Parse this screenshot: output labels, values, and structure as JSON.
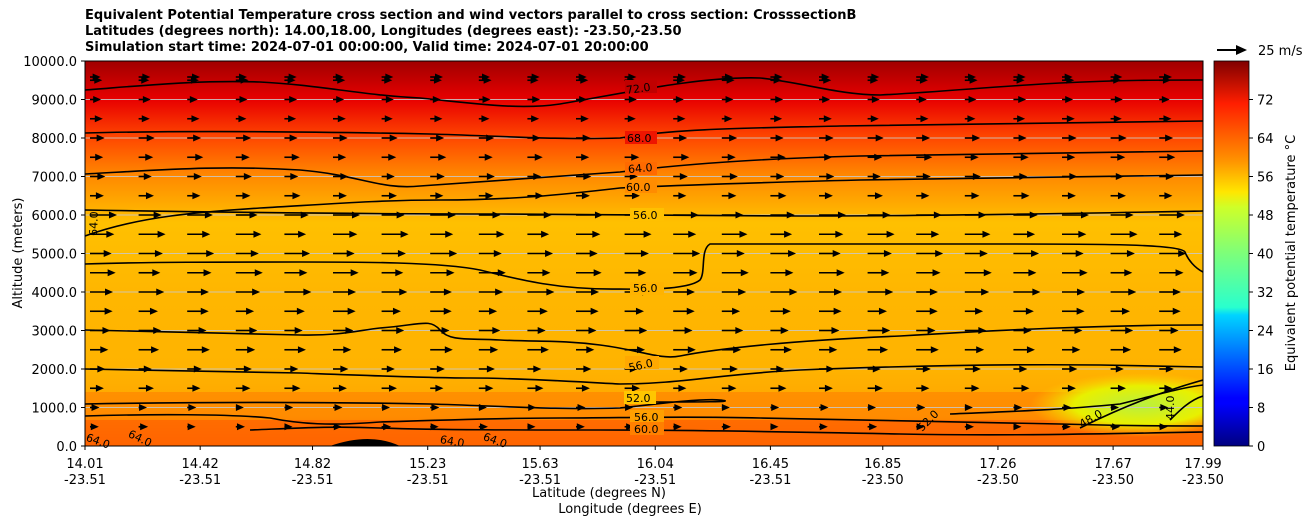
{
  "chart_data": {
    "type": "heatmap",
    "title_lines": [
      "Equivalent Potential Temperature cross section and wind vectors parallel to cross section: CrosssectionB",
      "Latitudes (degrees north): 14.00,18.00, Longitudes (degrees east): -23.50,-23.50",
      "Simulation start time: 2024-07-01 00:00:00, Valid time: 2024-07-01 20:00:00"
    ],
    "xlabel_lat": "Latitude (degrees N)",
    "xlabel_lon": "Longitude (degrees E)",
    "ylabel": "Altitude (meters)",
    "x_ticks": [
      {
        "lat": "14.01",
        "lon": "-23.51"
      },
      {
        "lat": "14.42",
        "lon": "-23.51"
      },
      {
        "lat": "14.82",
        "lon": "-23.51"
      },
      {
        "lat": "15.23",
        "lon": "-23.51"
      },
      {
        "lat": "15.63",
        "lon": "-23.51"
      },
      {
        "lat": "16.04",
        "lon": "-23.51"
      },
      {
        "lat": "16.45",
        "lon": "-23.51"
      },
      {
        "lat": "16.85",
        "lon": "-23.50"
      },
      {
        "lat": "17.26",
        "lon": "-23.50"
      },
      {
        "lat": "17.67",
        "lon": "-23.50"
      },
      {
        "lat": "17.99",
        "lon": "-23.50"
      }
    ],
    "x_range": [
      14.01,
      17.99
    ],
    "y_range": [
      0,
      10000
    ],
    "y_ticks": [
      "0.0",
      "1000.0",
      "2000.0",
      "3000.0",
      "4000.0",
      "5000.0",
      "6000.0",
      "7000.0",
      "8000.0",
      "9000.0",
      "10000.0"
    ],
    "y_tick_values": [
      0,
      1000,
      2000,
      3000,
      4000,
      5000,
      6000,
      7000,
      8000,
      9000,
      10000
    ],
    "grid": true,
    "colorbar": {
      "label": "Equivalent potential temperature $^\\circ$C",
      "label_display": "Equivalent potential temperature °C",
      "range": [
        0,
        80
      ],
      "ticks": [
        "0",
        "8",
        "16",
        "24",
        "32",
        "40",
        "48",
        "56",
        "64",
        "72"
      ],
      "tick_values": [
        0,
        8,
        16,
        24,
        32,
        40,
        48,
        56,
        64,
        72
      ]
    },
    "quiver_key": "25 m/s",
    "contour_labels": [
      "72.0",
      "68.0",
      "64.0",
      "60.0",
      "56.0",
      "56.0",
      "56.0",
      "52.0",
      "56.0",
      "60.0",
      "64.0",
      "64.0",
      "64.0",
      "64.0",
      "64.0",
      "52.0",
      "48.0",
      "44.0"
    ],
    "theta_e_profile_by_altitude": [
      {
        "z": 0,
        "value": 61
      },
      {
        "z": 500,
        "value": 60
      },
      {
        "z": 1000,
        "value": 57
      },
      {
        "z": 2000,
        "value": 57
      },
      {
        "z": 3000,
        "value": 56
      },
      {
        "z": 4000,
        "value": 56
      },
      {
        "z": 5000,
        "value": 55
      },
      {
        "z": 6000,
        "value": 57
      },
      {
        "z": 7000,
        "value": 61
      },
      {
        "z": 8000,
        "value": 66
      },
      {
        "z": 9000,
        "value": 71
      },
      {
        "z": 10000,
        "value": 76
      }
    ]
  }
}
